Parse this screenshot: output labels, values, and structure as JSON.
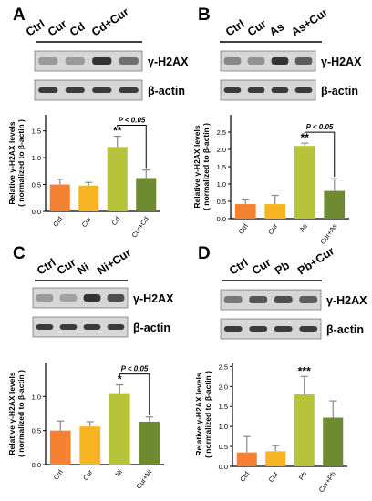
{
  "colors": {
    "ctrl": "#f58232",
    "cur": "#f7b523",
    "metal": "#b7c33a",
    "combo": "#6e8b32",
    "errorbar": "#888888",
    "blot_bg": "#d6d6d6",
    "band": "#2a2a2a"
  },
  "blot_labels": {
    "target": "γ-H2AX",
    "control": "β-actin"
  },
  "ylabel": {
    "line1": "Relative γ-H2AX levels",
    "line2": "( normalized to β-actin )"
  },
  "panels": [
    {
      "letter": "A",
      "lanes": [
        "Ctrl",
        "Cur",
        "Cd",
        "Cd+Cur"
      ],
      "chart_data": {
        "type": "bar",
        "categories": [
          "Ctrl",
          "Cur",
          "Cd",
          "Cur+Cd"
        ],
        "values": [
          0.5,
          0.48,
          1.2,
          0.62
        ],
        "errors": [
          0.1,
          0.06,
          0.2,
          0.15
        ],
        "ylim": [
          0,
          1.8
        ],
        "yticks": [
          0,
          0.5,
          1.0,
          1.5
        ],
        "ytick_labels": [
          "0.0",
          "0.5",
          "1.0",
          "1.5"
        ],
        "sig_marks": {
          "2": "**"
        },
        "bracket": {
          "from": 2,
          "to": 3,
          "label": "P < 0.05"
        }
      }
    },
    {
      "letter": "B",
      "lanes": [
        "Ctrl",
        "Cur",
        "As",
        "As+Cur"
      ],
      "chart_data": {
        "type": "bar",
        "categories": [
          "Ctrl",
          "Cur",
          "As",
          "Cur+As"
        ],
        "values": [
          0.42,
          0.42,
          2.1,
          0.8
        ],
        "errors": [
          0.12,
          0.25,
          0.08,
          0.35
        ],
        "ylim": [
          0,
          3.0
        ],
        "yticks": [
          0,
          0.5,
          1.0,
          1.5,
          2.0,
          2.5
        ],
        "ytick_labels": [
          "0.0",
          "0.5",
          "1.0",
          "1.5",
          "2.0",
          "2.5"
        ],
        "sig_marks": {
          "2": "**"
        },
        "bracket": {
          "from": 2,
          "to": 3,
          "label": "P < 0.05"
        }
      }
    },
    {
      "letter": "C",
      "lanes": [
        "Ctrl",
        "Cur",
        "Ni",
        "Ni+Cur"
      ],
      "chart_data": {
        "type": "bar",
        "categories": [
          "Ctrl",
          "Cur",
          "Ni",
          "Cur+Ni"
        ],
        "values": [
          0.5,
          0.56,
          1.05,
          0.63
        ],
        "errors": [
          0.14,
          0.07,
          0.12,
          0.07
        ],
        "ylim": [
          0,
          1.5
        ],
        "yticks": [
          0,
          0.5,
          1.0
        ],
        "ytick_labels": [
          "0.0",
          "0.5",
          "1.0"
        ],
        "sig_marks": {
          "2": "*"
        },
        "bracket": {
          "from": 2,
          "to": 3,
          "label": "P < 0.05"
        }
      }
    },
    {
      "letter": "D",
      "lanes": [
        "Ctrl",
        "Cur",
        "Pb",
        "Pb+Cur"
      ],
      "chart_data": {
        "type": "bar",
        "categories": [
          "Ctrl",
          "Cur",
          "Pb",
          "Cur+Pb"
        ],
        "values": [
          0.35,
          0.38,
          1.8,
          1.22
        ],
        "errors": [
          0.4,
          0.14,
          0.45,
          0.42
        ],
        "ylim": [
          0,
          2.6
        ],
        "yticks": [
          0,
          0.5,
          1.0,
          1.5,
          2.0,
          2.5
        ],
        "ytick_labels": [
          "0.0",
          "0.5",
          "1.0",
          "1.5",
          "2.0",
          "2.5"
        ],
        "sig_marks": {
          "2": "***"
        },
        "bracket": null
      }
    }
  ]
}
